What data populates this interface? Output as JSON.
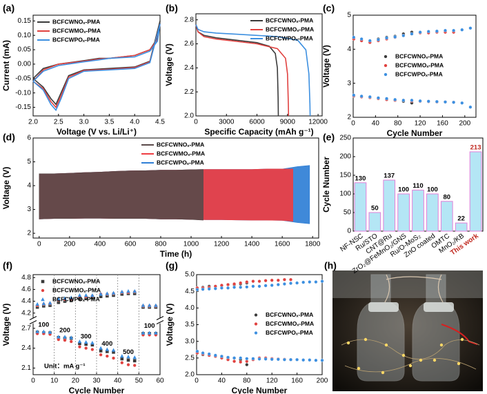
{
  "chart_data": [
    {
      "type": "line",
      "title": "(a)",
      "x_label": "Voltage (V vs. Li/Li⁺)",
      "y_label": "Current (mA)",
      "xlim": [
        2.0,
        4.5
      ],
      "xticks": [
        {
          "value": 2,
          "label": "2.0"
        },
        2.5,
        {
          "value": 3,
          "label": "3.0"
        },
        3.5,
        {
          "value": 4,
          "label": "4.0"
        },
        4.5
      ],
      "ylim": [
        -0.18,
        0.17
      ],
      "yticks": [
        -0.15,
        {
          "value": -0.1,
          "label": "-0.10"
        },
        -0.05,
        {
          "value": 0,
          "label": "0.00"
        },
        0.05,
        {
          "value": 0.1,
          "label": "0.10"
        },
        0.15
      ],
      "legend": "upper left",
      "x": [
        2.0,
        2.2,
        2.5,
        3.0,
        3.3,
        3.5,
        4.0,
        4.3,
        4.45,
        4.5,
        4.3,
        4.0,
        3.5,
        3.0,
        2.7,
        2.55,
        2.45,
        2.35,
        2.2,
        2.0
      ],
      "series": [
        {
          "name": "BCFCWNOₓ-PMA",
          "color": "#3a3a3a",
          "values": [
            -0.05,
            -0.015,
            0.0,
            0.012,
            0.02,
            0.02,
            0.03,
            0.05,
            0.09,
            0.15,
            0.01,
            -0.01,
            -0.015,
            -0.02,
            -0.04,
            -0.1,
            -0.14,
            -0.12,
            -0.08,
            -0.05
          ]
        },
        {
          "name": "BCFCWMOₓ-PMA",
          "color": "#e0413f",
          "values": [
            -0.06,
            -0.02,
            0.0,
            0.01,
            0.018,
            0.02,
            0.03,
            0.05,
            0.085,
            0.14,
            0.008,
            -0.012,
            -0.018,
            -0.022,
            -0.045,
            -0.11,
            -0.15,
            -0.13,
            -0.085,
            -0.06
          ]
        },
        {
          "name": "BCFCWPOₓ-PMA",
          "color": "#3c8fe0",
          "values": [
            -0.06,
            -0.025,
            -0.005,
            0.008,
            0.015,
            0.02,
            0.025,
            0.045,
            0.08,
            0.14,
            0.005,
            -0.015,
            -0.02,
            -0.025,
            -0.05,
            -0.12,
            -0.16,
            -0.14,
            -0.09,
            -0.06
          ]
        }
      ]
    },
    {
      "type": "line",
      "title": "(b)",
      "x_label": "Specific Capacity (mAh g⁻¹)",
      "y_label": "Voltage (V)",
      "xlim": [
        0,
        12400
      ],
      "xticks": [
        0,
        3000,
        6000,
        9000,
        12000
      ],
      "ylim": [
        2.0,
        2.85
      ],
      "yticks": [
        {
          "value": 2,
          "label": "2.0"
        },
        2.2,
        2.4,
        2.6,
        2.8
      ],
      "legend": "upper right",
      "series": [
        {
          "name": "BCFCWNOₓ-PMA",
          "color": "#3a3a3a",
          "x": [
            0,
            200,
            800,
            2000,
            4000,
            6000,
            7200,
            7800,
            8000,
            8080,
            8100
          ],
          "values": [
            2.76,
            2.7,
            2.67,
            2.65,
            2.63,
            2.61,
            2.58,
            2.52,
            2.4,
            2.15,
            2.0
          ]
        },
        {
          "name": "BCFCWMOₓ-PMA",
          "color": "#e0413f",
          "x": [
            0,
            200,
            800,
            2000,
            4000,
            6000,
            8000,
            8800,
            9000,
            9080,
            9100
          ],
          "values": [
            2.76,
            2.7,
            2.66,
            2.64,
            2.62,
            2.6,
            2.56,
            2.48,
            2.35,
            2.1,
            2.0
          ]
        },
        {
          "name": "BCFCWPOₓ-PMA",
          "color": "#3c8fe0",
          "x": [
            0,
            200,
            800,
            2000,
            4000,
            6000,
            8000,
            10000,
            10800,
            11100,
            11200,
            11220
          ],
          "values": [
            2.76,
            2.72,
            2.7,
            2.69,
            2.68,
            2.67,
            2.66,
            2.63,
            2.55,
            2.35,
            2.1,
            2.0
          ]
        }
      ]
    },
    {
      "type": "scatter",
      "title": "(c)",
      "x_label": "Cycle Number",
      "y_label": "Voltage (V)",
      "xlim": [
        0,
        220
      ],
      "xticks": [
        0,
        40,
        80,
        120,
        160,
        200
      ],
      "ylim": [
        2,
        5
      ],
      "yticks": [
        2,
        3,
        4,
        5
      ],
      "legend": "center",
      "series": [
        {
          "name": "BCFCWNOₓ-PMA",
          "color": "#3a3a3a",
          "x": [
            1,
            15,
            30,
            45,
            60,
            75,
            90,
            105
          ],
          "charge": [
            4.3,
            4.25,
            4.22,
            4.3,
            4.35,
            4.38,
            4.45,
            4.5
          ],
          "discharge": [
            2.62,
            2.6,
            2.58,
            2.55,
            2.52,
            2.5,
            2.47,
            2.42
          ]
        },
        {
          "name": "BCFCWMOₓ-PMA",
          "color": "#e0413f",
          "x": [
            1,
            15,
            30,
            45,
            60,
            75,
            90,
            105,
            120,
            135,
            150,
            165,
            180
          ],
          "charge": [
            4.3,
            4.25,
            4.2,
            4.25,
            4.3,
            4.35,
            4.4,
            4.45,
            4.48,
            4.48,
            4.5,
            4.5,
            4.5
          ],
          "discharge": [
            2.63,
            2.6,
            2.58,
            2.55,
            2.52,
            2.5,
            2.5,
            2.48,
            2.47,
            2.46,
            2.45,
            2.45,
            2.44
          ]
        },
        {
          "name": "BCFCWPOₓ-PMA",
          "color": "#3c8fe0",
          "x": [
            1,
            15,
            30,
            45,
            60,
            75,
            90,
            105,
            120,
            135,
            150,
            165,
            180,
            195,
            210
          ],
          "charge": [
            4.35,
            4.3,
            4.25,
            4.28,
            4.33,
            4.36,
            4.4,
            4.45,
            4.5,
            4.52,
            4.53,
            4.55,
            4.55,
            4.57,
            4.62
          ],
          "discharge": [
            2.65,
            2.62,
            2.6,
            2.57,
            2.55,
            2.52,
            2.5,
            2.5,
            2.48,
            2.47,
            2.46,
            2.45,
            2.44,
            2.42,
            2.3
          ]
        }
      ]
    },
    {
      "type": "area",
      "title": "(d)",
      "x_label": "Time (h)",
      "y_label": "Voltage (V)",
      "xlim": [
        -40,
        1840
      ],
      "xticks": [
        0,
        200,
        400,
        600,
        800,
        1000,
        1200,
        1400,
        1600,
        1800
      ],
      "ylim": [
        1.8,
        6
      ],
      "yticks": [
        2,
        3,
        4,
        5,
        6
      ],
      "legend": "upper center",
      "series": [
        {
          "name": "BCFCWNOₓ-PMA",
          "color": "#5a4a4a",
          "x": [
            0,
            100,
            200,
            300,
            400,
            500,
            600,
            700,
            800,
            900,
            1000,
            1080
          ],
          "charge": [
            4.5,
            4.5,
            4.52,
            4.55,
            4.57,
            4.6,
            4.62,
            4.63,
            4.65,
            4.65,
            4.67,
            4.68
          ],
          "discharge": [
            2.6,
            2.62,
            2.62,
            2.63,
            2.63,
            2.62,
            2.62,
            2.62,
            2.6,
            2.6,
            2.58,
            2.55
          ]
        },
        {
          "name": "BCFCWMOₓ-PMA",
          "color": "#ee3d42",
          "x": [
            0,
            100,
            200,
            300,
            400,
            500,
            600,
            700,
            800,
            900,
            1000,
            1100,
            1200,
            1300,
            1400,
            1500,
            1600,
            1670
          ],
          "charge": [
            4.5,
            4.5,
            4.52,
            4.55,
            4.57,
            4.6,
            4.62,
            4.63,
            4.65,
            4.65,
            4.67,
            4.68,
            4.68,
            4.68,
            4.68,
            4.7,
            4.7,
            4.7
          ],
          "discharge": [
            2.6,
            2.62,
            2.62,
            2.63,
            2.63,
            2.62,
            2.62,
            2.62,
            2.6,
            2.6,
            2.58,
            2.57,
            2.57,
            2.56,
            2.55,
            2.55,
            2.54,
            2.5
          ]
        },
        {
          "name": "BCFCWPOₓ-PMA",
          "color": "#2f7fd6",
          "x": [
            0,
            100,
            200,
            300,
            400,
            500,
            600,
            700,
            800,
            900,
            1000,
            1100,
            1200,
            1300,
            1400,
            1500,
            1600,
            1700,
            1780
          ],
          "charge": [
            4.5,
            4.5,
            4.52,
            4.55,
            4.57,
            4.6,
            4.62,
            4.63,
            4.65,
            4.65,
            4.67,
            4.68,
            4.68,
            4.68,
            4.68,
            4.7,
            4.7,
            4.8,
            4.85
          ],
          "discharge": [
            2.6,
            2.62,
            2.62,
            2.63,
            2.63,
            2.62,
            2.62,
            2.62,
            2.6,
            2.6,
            2.58,
            2.57,
            2.57,
            2.56,
            2.55,
            2.55,
            2.54,
            2.45,
            2.4
          ]
        }
      ]
    },
    {
      "type": "bar",
      "title": "(e)",
      "y_label": "Cycle Number",
      "categories": [
        "NF-NSC",
        "Ru/STO",
        "CNT@Ru",
        "ZrO₂@FeMnO₂/GNS",
        "Ru/O-MoS₂",
        "ZnO coated",
        "OMTC",
        "MnO₂/KB",
        "This work"
      ],
      "values": [
        130,
        50,
        137,
        100,
        110,
        100,
        80,
        22,
        213
      ],
      "color": "#b4e6f5",
      "edge_color": "#e27fd9",
      "label_colors": [
        "#000000",
        "#000000",
        "#000000",
        "#000000",
        "#000000",
        "#000000",
        "#000000",
        "#000000",
        "#c0281f"
      ],
      "ylim": [
        0,
        250
      ],
      "yticks": [
        0,
        50,
        100,
        150,
        200,
        250
      ]
    },
    {
      "type": "scatter",
      "title": "(f)",
      "x_label": "Cycle Number",
      "y_label": "Voltage (V)",
      "xlim": [
        0,
        60
      ],
      "xticks": [
        0,
        10,
        20,
        30,
        40,
        50,
        60
      ],
      "ylim": [
        2.0,
        2.75
      ],
      "yticks": [
        2.1,
        2.4,
        2.7
      ],
      "ylim_break": [
        4.15,
        4.85
      ],
      "yticks_break": [
        4.2,
        4.4,
        4.6,
        4.8
      ],
      "dividers": [
        10,
        20,
        30,
        40,
        50
      ],
      "rate_labels": [
        "100",
        "200",
        "300",
        "400",
        "500",
        "100"
      ],
      "unit_label": "Unit：mA g⁻¹",
      "legend": "upper left",
      "x": [
        2,
        5,
        8,
        12,
        15,
        18,
        22,
        25,
        28,
        32,
        35,
        38,
        42,
        45,
        48,
        52,
        55,
        58
      ],
      "series": [
        {
          "name": "BCFCWNOₓ-PMA",
          "color": "#3a3a3a",
          "marker": "square",
          "charge": [
            4.3,
            4.32,
            4.33,
            4.38,
            4.4,
            4.41,
            4.44,
            4.45,
            4.46,
            4.48,
            4.49,
            4.5,
            4.52,
            4.53,
            4.53,
            4.3,
            4.3,
            4.3
          ],
          "discharge": [
            2.64,
            2.63,
            2.63,
            2.56,
            2.55,
            2.55,
            2.47,
            2.46,
            2.45,
            2.36,
            2.35,
            2.34,
            2.24,
            2.22,
            2.21,
            2.62,
            2.62,
            2.62
          ]
        },
        {
          "name": "BCFCWMOₓ-PMA",
          "color": "#e0413f",
          "marker": "circle",
          "charge": [
            4.33,
            4.35,
            4.36,
            4.42,
            4.43,
            4.44,
            4.48,
            4.48,
            4.49,
            4.52,
            4.52,
            4.53,
            4.55,
            4.55,
            4.56,
            4.32,
            4.32,
            4.32
          ],
          "discharge": [
            2.62,
            2.62,
            2.61,
            2.53,
            2.52,
            2.5,
            2.42,
            2.4,
            2.38,
            2.3,
            2.28,
            2.25,
            2.18,
            2.15,
            2.14,
            2.6,
            2.6,
            2.6
          ]
        },
        {
          "name": "BCFCWPOₓ-PMA",
          "color": "#3c8fe0",
          "marker": "triangle",
          "charge": [
            4.35,
            4.36,
            4.37,
            4.44,
            4.45,
            4.46,
            4.5,
            4.5,
            4.5,
            4.52,
            4.53,
            4.54,
            4.56,
            4.57,
            4.57,
            4.33,
            4.33,
            4.33
          ],
          "discharge": [
            2.65,
            2.65,
            2.64,
            2.57,
            2.57,
            2.56,
            2.5,
            2.49,
            2.48,
            2.4,
            2.38,
            2.37,
            2.28,
            2.27,
            2.26,
            2.63,
            2.63,
            2.63
          ]
        }
      ]
    },
    {
      "type": "scatter",
      "title": "(g)",
      "x_label": "Cycle Number",
      "y_label": "Voltage (V)",
      "xlim": [
        0,
        200
      ],
      "xticks": [
        0,
        40,
        80,
        120,
        160,
        200
      ],
      "ylim": [
        2.0,
        5.0
      ],
      "yticks": [
        {
          "value": 2,
          "label": "2.0"
        },
        2.5,
        {
          "value": 3,
          "label": "3.0"
        },
        3.5,
        {
          "value": 4,
          "label": "4.0"
        },
        4.5,
        {
          "value": 5,
          "label": "5.0"
        }
      ],
      "legend": "center right",
      "series": [
        {
          "name": "BCFCWNOₓ-PMA",
          "color": "#3a3a3a",
          "x": [
            1,
            10,
            20,
            30,
            40,
            50,
            60,
            70,
            80
          ],
          "charge": [
            4.6,
            4.62,
            4.65,
            4.65,
            4.67,
            4.7,
            4.7,
            4.72,
            4.75
          ],
          "discharge": [
            2.65,
            2.6,
            2.58,
            2.55,
            2.55,
            2.5,
            2.5,
            2.45,
            2.3
          ]
        },
        {
          "name": "BCFCWMOₓ-PMA",
          "color": "#e0413f",
          "x": [
            1,
            10,
            20,
            30,
            40,
            50,
            60,
            70,
            80,
            90,
            100,
            110,
            120,
            130,
            140,
            150
          ],
          "charge": [
            4.6,
            4.6,
            4.62,
            4.65,
            4.68,
            4.7,
            4.72,
            4.75,
            4.78,
            4.8,
            4.8,
            4.82,
            4.83,
            4.83,
            4.85,
            4.85
          ],
          "discharge": [
            2.65,
            2.62,
            2.58,
            2.55,
            2.5,
            2.45,
            2.4,
            2.38,
            2.4,
            2.45,
            2.5,
            2.5,
            2.48,
            2.47,
            2.46,
            2.45
          ]
        },
        {
          "name": "BCFCWPOₓ-PMA",
          "color": "#3c8fe0",
          "x": [
            1,
            10,
            20,
            30,
            40,
            50,
            60,
            70,
            80,
            90,
            100,
            110,
            120,
            130,
            140,
            150,
            160,
            170,
            180,
            190,
            200
          ],
          "charge": [
            4.55,
            4.56,
            4.57,
            4.58,
            4.6,
            4.6,
            4.62,
            4.62,
            4.63,
            4.65,
            4.65,
            4.67,
            4.68,
            4.7,
            4.72,
            4.74,
            4.75,
            4.77,
            4.78,
            4.78,
            4.8
          ],
          "discharge": [
            2.7,
            2.65,
            2.62,
            2.58,
            2.55,
            2.52,
            2.5,
            2.5,
            2.48,
            2.48,
            2.47,
            2.47,
            2.46,
            2.46,
            2.45,
            2.45,
            2.45,
            2.44,
            2.44,
            2.43,
            2.43
          ]
        }
      ]
    },
    {
      "type": "photo",
      "title": "(h)"
    }
  ]
}
